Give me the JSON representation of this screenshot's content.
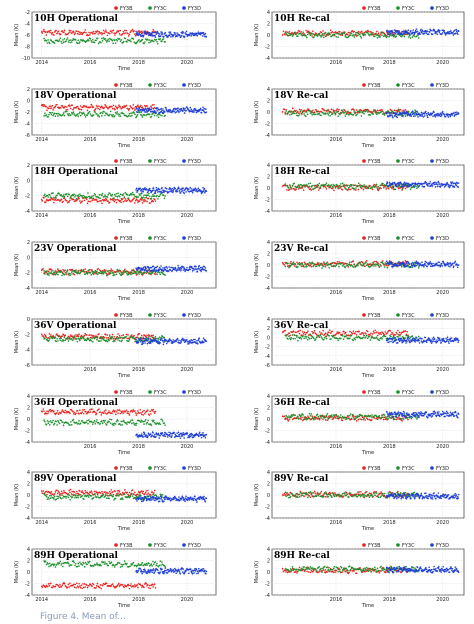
{
  "legend_labels": [
    "FY3B",
    "FY3C",
    "FY3D"
  ],
  "xlabel": "Time",
  "ylabel": "Mean (K)",
  "colors": {
    "FY3B": "#e8231f",
    "FY3C": "#1a8f2a",
    "FY3D": "#1f3fd6"
  },
  "caption": "Figure 4. Mean of...",
  "chart_data": [
    {
      "type": "scatter",
      "title": "10H Operational",
      "ylim": [
        -10,
        -2
      ],
      "yticks": [
        -10,
        -8,
        -6,
        -4,
        -2
      ],
      "xticks": [
        "2014",
        "2016",
        "2018",
        "2020"
      ],
      "xlim": [
        2013.6,
        2021.2
      ],
      "grid": true,
      "series": [
        {
          "name": "FY3B",
          "x_range": [
            2014.0,
            2018.7
          ],
          "level": -5.6
        },
        {
          "name": "FY3C",
          "x_range": [
            2014.1,
            2019.1
          ],
          "level": -7.0
        },
        {
          "name": "FY3D",
          "x_range": [
            2017.9,
            2020.8
          ],
          "level": -5.9
        }
      ]
    },
    {
      "type": "scatter",
      "title": "10H Re-cal",
      "ylim": [
        -4,
        4
      ],
      "yticks": [
        -4,
        -2,
        0,
        2,
        4
      ],
      "xticks": [
        "2016",
        "2018",
        "2020"
      ],
      "xlim": [
        2013.6,
        2020.8
      ],
      "grid": true,
      "series": [
        {
          "name": "FY3B",
          "x_range": [
            2014.0,
            2018.7
          ],
          "level": 0.3
        },
        {
          "name": "FY3C",
          "x_range": [
            2014.1,
            2019.1
          ],
          "level": 0.0
        },
        {
          "name": "FY3D",
          "x_range": [
            2017.9,
            2020.6
          ],
          "level": 0.5
        }
      ]
    },
    {
      "type": "scatter",
      "title": "18V Operational",
      "ylim": [
        -6,
        2
      ],
      "yticks": [
        -6,
        -4,
        -2,
        0,
        2
      ],
      "xticks": [
        "2014",
        "2016",
        "2018",
        "2020"
      ],
      "xlim": [
        2013.6,
        2021.2
      ],
      "grid": true,
      "series": [
        {
          "name": "FY3B",
          "x_range": [
            2014.0,
            2018.7
          ],
          "level": -1.2
        },
        {
          "name": "FY3C",
          "x_range": [
            2014.1,
            2019.1
          ],
          "level": -2.4
        },
        {
          "name": "FY3D",
          "x_range": [
            2017.9,
            2020.8
          ],
          "level": -1.7
        }
      ]
    },
    {
      "type": "scatter",
      "title": "18V Re-cal",
      "ylim": [
        -4,
        4
      ],
      "yticks": [
        -4,
        -2,
        0,
        2,
        4
      ],
      "xticks": [
        "2016",
        "2018",
        "2020"
      ],
      "xlim": [
        2013.6,
        2020.8
      ],
      "grid": true,
      "series": [
        {
          "name": "FY3B",
          "x_range": [
            2014.0,
            2018.7
          ],
          "level": 0.1
        },
        {
          "name": "FY3C",
          "x_range": [
            2014.1,
            2019.1
          ],
          "level": -0.2
        },
        {
          "name": "FY3D",
          "x_range": [
            2017.9,
            2020.6
          ],
          "level": -0.4
        }
      ]
    },
    {
      "type": "scatter",
      "title": "18H Operational",
      "ylim": [
        -4,
        2
      ],
      "yticks": [
        -4,
        -2,
        0,
        2
      ],
      "xticks": [
        "2014",
        "2016",
        "2018",
        "2020"
      ],
      "xlim": [
        2013.6,
        2021.2
      ],
      "grid": true,
      "series": [
        {
          "name": "FY3B",
          "x_range": [
            2014.0,
            2018.7
          ],
          "level": -2.6
        },
        {
          "name": "FY3C",
          "x_range": [
            2014.1,
            2019.1
          ],
          "level": -2.0
        },
        {
          "name": "FY3D",
          "x_range": [
            2017.9,
            2020.8
          ],
          "level": -1.3
        }
      ]
    },
    {
      "type": "scatter",
      "title": "18H Re-cal",
      "ylim": [
        -4,
        4
      ],
      "yticks": [
        -4,
        -2,
        0,
        2,
        4
      ],
      "xticks": [
        "2016",
        "2018",
        "2020"
      ],
      "xlim": [
        2013.6,
        2020.8
      ],
      "grid": true,
      "series": [
        {
          "name": "FY3B",
          "x_range": [
            2014.0,
            2018.7
          ],
          "level": 0.1
        },
        {
          "name": "FY3C",
          "x_range": [
            2014.1,
            2019.1
          ],
          "level": 0.3
        },
        {
          "name": "FY3D",
          "x_range": [
            2017.9,
            2020.6
          ],
          "level": 0.6
        }
      ]
    },
    {
      "type": "scatter",
      "title": "23V Operational",
      "ylim": [
        -4,
        2
      ],
      "yticks": [
        -4,
        -2,
        0,
        2
      ],
      "xticks": [
        "2014",
        "2016",
        "2018",
        "2020"
      ],
      "xlim": [
        2013.6,
        2021.2
      ],
      "grid": true,
      "series": [
        {
          "name": "FY3B",
          "x_range": [
            2014.0,
            2018.7
          ],
          "level": -1.9
        },
        {
          "name": "FY3C",
          "x_range": [
            2014.1,
            2019.1
          ],
          "level": -2.0
        },
        {
          "name": "FY3D",
          "x_range": [
            2017.9,
            2020.8
          ],
          "level": -1.5
        }
      ]
    },
    {
      "type": "scatter",
      "title": "23V Re-cal",
      "ylim": [
        -4,
        4
      ],
      "yticks": [
        -4,
        -2,
        0,
        2,
        4
      ],
      "xticks": [
        "2016",
        "2018",
        "2020"
      ],
      "xlim": [
        2013.6,
        2020.8
      ],
      "grid": true,
      "series": [
        {
          "name": "FY3B",
          "x_range": [
            2014.0,
            2018.7
          ],
          "level": 0.2
        },
        {
          "name": "FY3C",
          "x_range": [
            2014.1,
            2019.1
          ],
          "level": 0.0
        },
        {
          "name": "FY3D",
          "x_range": [
            2017.9,
            2020.6
          ],
          "level": 0.1
        }
      ]
    },
    {
      "type": "scatter",
      "title": "36V Operational",
      "ylim": [
        -6,
        0
      ],
      "yticks": [
        -6,
        -4,
        -2,
        0
      ],
      "xticks": [
        "2016",
        "2018",
        "2020"
      ],
      "xlim": [
        2013.6,
        2021.2
      ],
      "grid": true,
      "series": [
        {
          "name": "FY3B",
          "x_range": [
            2014.0,
            2018.7
          ],
          "level": -2.3
        },
        {
          "name": "FY3C",
          "x_range": [
            2014.1,
            2019.1
          ],
          "level": -2.6
        },
        {
          "name": "FY3D",
          "x_range": [
            2017.9,
            2020.8
          ],
          "level": -2.9
        }
      ]
    },
    {
      "type": "scatter",
      "title": "36V Re-cal",
      "ylim": [
        -6,
        4
      ],
      "yticks": [
        -6,
        -4,
        -2,
        0,
        2,
        4
      ],
      "xticks": [
        "2016",
        "2018",
        "2020"
      ],
      "xlim": [
        2013.6,
        2020.8
      ],
      "grid": true,
      "series": [
        {
          "name": "FY3B",
          "x_range": [
            2014.0,
            2018.7
          ],
          "level": 0.9
        },
        {
          "name": "FY3C",
          "x_range": [
            2014.1,
            2019.1
          ],
          "level": 0.0
        },
        {
          "name": "FY3D",
          "x_range": [
            2017.9,
            2020.6
          ],
          "level": -0.6
        }
      ]
    },
    {
      "type": "scatter",
      "title": "36H Operational",
      "ylim": [
        -4,
        4
      ],
      "yticks": [
        -4,
        -2,
        0,
        2,
        4
      ],
      "xticks": [
        "2016",
        "2018",
        "2020"
      ],
      "xlim": [
        2013.6,
        2021.2
      ],
      "grid": true,
      "series": [
        {
          "name": "FY3B",
          "x_range": [
            2014.0,
            2018.7
          ],
          "level": 1.2
        },
        {
          "name": "FY3C",
          "x_range": [
            2014.1,
            2019.1
          ],
          "level": -0.6
        },
        {
          "name": "FY3D",
          "x_range": [
            2017.9,
            2020.8
          ],
          "level": -2.8
        }
      ]
    },
    {
      "type": "scatter",
      "title": "36H Re-cal",
      "ylim": [
        -4,
        4
      ],
      "yticks": [
        -4,
        -2,
        0,
        2,
        4
      ],
      "xticks": [
        "2016",
        "2018",
        "2020"
      ],
      "xlim": [
        2013.6,
        2020.8
      ],
      "grid": true,
      "series": [
        {
          "name": "FY3B",
          "x_range": [
            2014.0,
            2018.7
          ],
          "level": 0.2
        },
        {
          "name": "FY3C",
          "x_range": [
            2014.1,
            2019.1
          ],
          "level": 0.4
        },
        {
          "name": "FY3D",
          "x_range": [
            2017.9,
            2020.6
          ],
          "level": 0.8
        }
      ]
    },
    {
      "type": "scatter",
      "title": "89V Operational",
      "ylim": [
        -4,
        4
      ],
      "yticks": [
        -4,
        -2,
        0,
        2,
        4
      ],
      "xticks": [
        "2014",
        "2016",
        "2018",
        "2020"
      ],
      "xlim": [
        2013.6,
        2021.2
      ],
      "grid": true,
      "series": [
        {
          "name": "FY3B",
          "x_range": [
            2014.0,
            2018.7
          ],
          "level": 0.4
        },
        {
          "name": "FY3C",
          "x_range": [
            2014.1,
            2019.1
          ],
          "level": -0.3
        },
        {
          "name": "FY3D",
          "x_range": [
            2017.9,
            2020.8
          ],
          "level": -0.7
        }
      ]
    },
    {
      "type": "scatter",
      "title": "89V Re-cal",
      "ylim": [
        -4,
        4
      ],
      "yticks": [
        -4,
        -2,
        0,
        2,
        4
      ],
      "xticks": [
        "2016",
        "2018",
        "2020"
      ],
      "xlim": [
        2013.6,
        2020.8
      ],
      "grid": true,
      "series": [
        {
          "name": "FY3B",
          "x_range": [
            2014.0,
            2018.7
          ],
          "level": 0.1
        },
        {
          "name": "FY3C",
          "x_range": [
            2014.1,
            2019.1
          ],
          "level": 0.0
        },
        {
          "name": "FY3D",
          "x_range": [
            2017.9,
            2020.6
          ],
          "level": -0.2
        }
      ]
    },
    {
      "type": "scatter",
      "title": "89H Operational",
      "ylim": [
        -4,
        4
      ],
      "yticks": [
        -4,
        -2,
        0,
        2,
        4
      ],
      "xticks": [
        "2014",
        "2016",
        "2018",
        "2020"
      ],
      "xlim": [
        2013.6,
        2021.2
      ],
      "grid": true,
      "series": [
        {
          "name": "FY3B",
          "x_range": [
            2014.0,
            2018.7
          ],
          "level": -2.4
        },
        {
          "name": "FY3C",
          "x_range": [
            2014.1,
            2019.1
          ],
          "level": 1.4
        },
        {
          "name": "FY3D",
          "x_range": [
            2017.9,
            2020.8
          ],
          "level": 0.2
        }
      ]
    },
    {
      "type": "scatter",
      "title": "89H Re-cal",
      "ylim": [
        -4,
        4
      ],
      "yticks": [
        -4,
        -2,
        0,
        2,
        4
      ],
      "xticks": [
        "2016",
        "2018",
        "2020"
      ],
      "xlim": [
        2013.6,
        2020.8
      ],
      "grid": true,
      "series": [
        {
          "name": "FY3B",
          "x_range": [
            2014.0,
            2018.7
          ],
          "level": 0.3
        },
        {
          "name": "FY3C",
          "x_range": [
            2014.1,
            2019.1
          ],
          "level": 0.5
        },
        {
          "name": "FY3D",
          "x_range": [
            2017.9,
            2020.6
          ],
          "level": 0.4
        }
      ]
    }
  ]
}
